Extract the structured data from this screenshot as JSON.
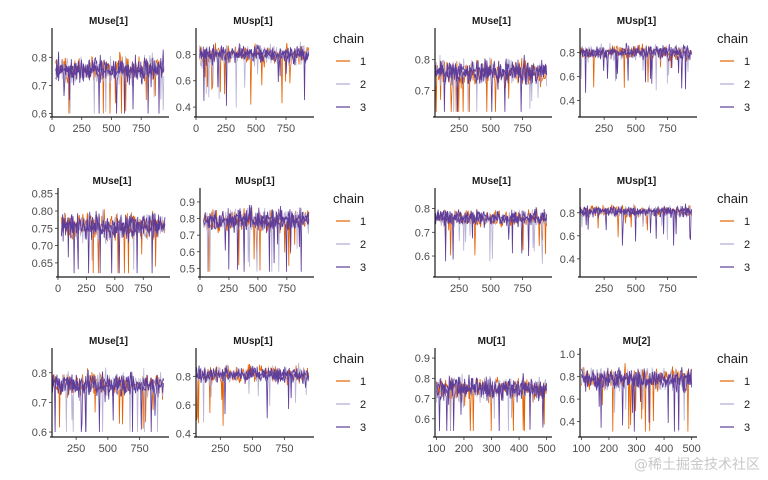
{
  "chart_data": [
    {
      "type": "line",
      "title": "MUse[1]",
      "xlabel": "",
      "ylabel": "",
      "xlim": [
        0,
        950
      ],
      "xticks": [
        0,
        250,
        500,
        750
      ],
      "ylim": [
        0.595,
        0.89
      ],
      "yticks": [
        0.6,
        0.7,
        0.8
      ],
      "ytick_labels": [
        "0.6",
        "0.7",
        "0.8"
      ],
      "center": 0.755,
      "spread": 0.045,
      "min": 0.6,
      "max": 0.88,
      "seed": 1
    },
    {
      "type": "line",
      "title": "MUsp[1]",
      "xlabel": "",
      "ylabel": "",
      "xlim": [
        0,
        950
      ],
      "xticks": [
        0,
        250,
        500,
        750
      ],
      "ylim": [
        0.34,
        0.97
      ],
      "yticks": [
        0.4,
        0.6,
        0.8
      ],
      "ytick_labels": [
        "0.4",
        "0.6",
        "0.8"
      ],
      "center": 0.8,
      "spread": 0.07,
      "min": 0.36,
      "max": 0.95,
      "seed": 2
    },
    {
      "type": "line",
      "title": "MUse[1]",
      "xlabel": "",
      "ylabel": "",
      "xlim": [
        60,
        950
      ],
      "xticks": [
        250,
        500,
        750
      ],
      "ylim": [
        0.62,
        0.89
      ],
      "yticks": [
        0.7,
        0.8
      ],
      "ytick_labels": [
        "0.7",
        "0.8"
      ],
      "center": 0.76,
      "spread": 0.04,
      "min": 0.63,
      "max": 0.88,
      "seed": 3
    },
    {
      "type": "line",
      "title": "MUsp[1]",
      "xlabel": "",
      "ylabel": "",
      "xlim": [
        60,
        950
      ],
      "xticks": [
        250,
        500,
        750
      ],
      "ylim": [
        0.28,
        0.97
      ],
      "yticks": [
        0.4,
        0.6,
        0.8
      ],
      "ytick_labels": [
        "0.4",
        "0.6",
        "0.8"
      ],
      "center": 0.8,
      "spread": 0.06,
      "min": 0.3,
      "max": 0.95,
      "seed": 4
    },
    {
      "type": "line",
      "title": "MUse[1]",
      "xlabel": "",
      "ylabel": "",
      "xlim": [
        0,
        950
      ],
      "xticks": [
        0,
        250,
        500,
        750
      ],
      "ylim": [
        0.615,
        0.855
      ],
      "yticks": [
        0.65,
        0.7,
        0.75,
        0.8,
        0.85
      ],
      "ytick_labels": [
        "0.65",
        "0.70",
        "0.75",
        "0.80",
        "0.85"
      ],
      "center": 0.755,
      "spread": 0.04,
      "min": 0.62,
      "max": 0.85,
      "seed": 5
    },
    {
      "type": "line",
      "title": "MUsp[1]",
      "xlabel": "",
      "ylabel": "",
      "xlim": [
        0,
        950
      ],
      "xticks": [
        0,
        250,
        500,
        750
      ],
      "ylim": [
        0.46,
        0.96
      ],
      "yticks": [
        0.5,
        0.6,
        0.7,
        0.8,
        0.9
      ],
      "ytick_labels": [
        "0.5",
        "0.6",
        "0.7",
        "0.8",
        "0.9"
      ],
      "center": 0.79,
      "spread": 0.07,
      "min": 0.48,
      "max": 0.94,
      "seed": 6
    },
    {
      "type": "line",
      "title": "MUse[1]",
      "xlabel": "",
      "ylabel": "",
      "xlim": [
        60,
        950
      ],
      "xticks": [
        250,
        500,
        750
      ],
      "ylim": [
        0.52,
        0.87
      ],
      "yticks": [
        0.6,
        0.7,
        0.8
      ],
      "ytick_labels": [
        "0.6",
        "0.7",
        "0.8"
      ],
      "center": 0.76,
      "spread": 0.035,
      "min": 0.53,
      "max": 0.86,
      "seed": 7
    },
    {
      "type": "line",
      "title": "MUsp[1]",
      "xlabel": "",
      "ylabel": "",
      "xlim": [
        60,
        950
      ],
      "xticks": [
        250,
        500,
        750
      ],
      "ylim": [
        0.26,
        0.98
      ],
      "yticks": [
        0.4,
        0.6,
        0.8
      ],
      "ytick_labels": [
        "0.4",
        "0.6",
        "0.8"
      ],
      "center": 0.81,
      "spread": 0.05,
      "min": 0.28,
      "max": 0.95,
      "seed": 8
    },
    {
      "type": "line",
      "title": "MUse[1]",
      "xlabel": "",
      "ylabel": "",
      "xlim": [
        60,
        950
      ],
      "xticks": [
        250,
        500,
        750
      ],
      "ylim": [
        0.59,
        0.87
      ],
      "yticks": [
        0.6,
        0.7,
        0.8
      ],
      "ytick_labels": [
        "0.6",
        "0.7",
        "0.8"
      ],
      "center": 0.76,
      "spread": 0.04,
      "min": 0.6,
      "max": 0.86,
      "seed": 9
    },
    {
      "type": "line",
      "title": "MUsp[1]",
      "xlabel": "",
      "ylabel": "",
      "xlim": [
        60,
        950
      ],
      "xticks": [
        250,
        500,
        750
      ],
      "ylim": [
        0.39,
        0.97
      ],
      "yticks": [
        0.4,
        0.6,
        0.8
      ],
      "ytick_labels": [
        "0.4",
        "0.6",
        "0.8"
      ],
      "center": 0.81,
      "spread": 0.06,
      "min": 0.41,
      "max": 0.95,
      "seed": 10
    },
    {
      "type": "line",
      "title": "MU[1]",
      "xlabel": "",
      "ylabel": "",
      "xlim": [
        95,
        505
      ],
      "xticks": [
        100,
        200,
        300,
        400,
        500
      ],
      "ylim": [
        0.52,
        0.93
      ],
      "yticks": [
        0.6,
        0.7,
        0.8,
        0.9
      ],
      "ytick_labels": [
        "0.6",
        "0.7",
        "0.8",
        "0.9"
      ],
      "center": 0.75,
      "spread": 0.06,
      "min": 0.54,
      "max": 0.91,
      "seed": 11
    },
    {
      "type": "line",
      "title": "MU[2]",
      "xlabel": "",
      "ylabel": "",
      "xlim": [
        95,
        505
      ],
      "xticks": [
        100,
        200,
        300,
        400,
        500
      ],
      "ylim": [
        0.28,
        1.02
      ],
      "yticks": [
        0.4,
        0.6,
        0.8,
        1.0
      ],
      "ytick_labels": [
        "0.4",
        "0.6",
        "0.8",
        "1.0"
      ],
      "center": 0.78,
      "spread": 0.1,
      "min": 0.31,
      "max": 0.99,
      "seed": 12
    }
  ],
  "legend": {
    "title": "chain",
    "placement": "right",
    "entries": [
      {
        "label": "1",
        "color": "#e66101"
      },
      {
        "label": "2",
        "color": "#b2abd2"
      },
      {
        "label": "3",
        "color": "#5e3c99"
      }
    ]
  },
  "watermark": "@稀土掘金技术社区"
}
